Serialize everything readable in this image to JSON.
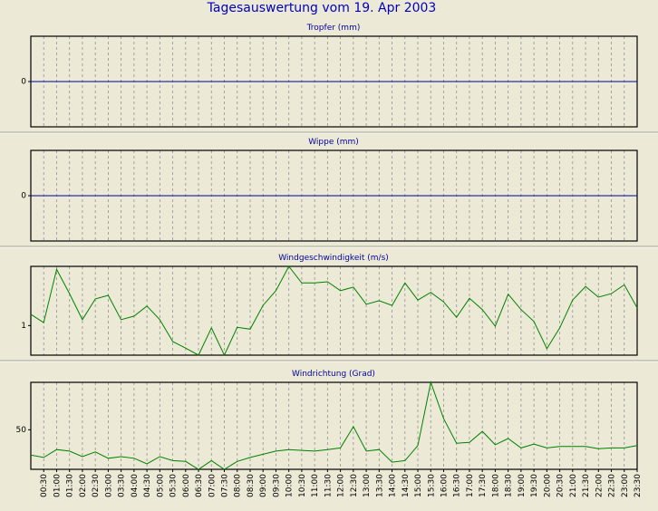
{
  "title": "Tagesauswertung vom 19. Apr 2003",
  "chart_data": [
    {
      "type": "line",
      "title": "Tropfer (mm)",
      "color": "#0000a0",
      "values": [
        0,
        0,
        0,
        0,
        0,
        0,
        0,
        0,
        0,
        0,
        0,
        0,
        0,
        0,
        0,
        0,
        0,
        0,
        0,
        0,
        0,
        0,
        0,
        0,
        0,
        0,
        0,
        0,
        0,
        0,
        0,
        0,
        0,
        0,
        0,
        0,
        0,
        0,
        0,
        0,
        0,
        0,
        0,
        0,
        0,
        0,
        0,
        0
      ],
      "ylim": [
        -1,
        1
      ],
      "yticks": [
        0
      ]
    },
    {
      "type": "line",
      "title": "Wippe (mm)",
      "color": "#0000a0",
      "values": [
        0,
        0,
        0,
        0,
        0,
        0,
        0,
        0,
        0,
        0,
        0,
        0,
        0,
        0,
        0,
        0,
        0,
        0,
        0,
        0,
        0,
        0,
        0,
        0,
        0,
        0,
        0,
        0,
        0,
        0,
        0,
        0,
        0,
        0,
        0,
        0,
        0,
        0,
        0,
        0,
        0,
        0,
        0,
        0,
        0,
        0,
        0,
        0
      ],
      "ylim": [
        -1,
        1
      ],
      "yticks": [
        0
      ]
    },
    {
      "type": "line",
      "title": "Windgeschwindigkeit (m/s)",
      "color": "#008000",
      "values": [
        1.19,
        1.05,
        1.95,
        1.54,
        1.1,
        1.45,
        1.51,
        1.1,
        1.16,
        1.33,
        1.1,
        0.73,
        0.62,
        0.5,
        0.96,
        0.5,
        0.97,
        0.94,
        1.34,
        1.59,
        2.0,
        1.72,
        1.72,
        1.74,
        1.59,
        1.65,
        1.36,
        1.42,
        1.34,
        1.72,
        1.43,
        1.56,
        1.4,
        1.14,
        1.46,
        1.27,
        0.99,
        1.53,
        1.27,
        1.07,
        0.61,
        0.96,
        1.43,
        1.66,
        1.48,
        1.54,
        1.69,
        1.3
      ],
      "ylim": [
        0.5,
        2.0
      ],
      "yticks": [
        1
      ]
    },
    {
      "type": "line",
      "title": "Windrichtung (Grad)",
      "color": "#008000",
      "values": [
        18,
        15,
        25,
        23,
        16,
        22,
        14,
        16,
        14,
        7,
        16,
        11,
        10,
        0,
        11,
        0,
        10,
        15,
        19,
        23,
        25,
        24,
        23,
        25,
        27,
        54,
        23,
        25,
        9,
        11,
        30,
        110,
        64,
        33,
        34,
        48,
        31,
        39,
        27,
        32,
        27,
        29,
        29,
        29,
        26,
        27,
        27,
        30
      ],
      "ylim": [
        0,
        110
      ],
      "yticks": [
        50
      ],
      "categories": [
        null,
        "00:30",
        "01:00",
        "01:30",
        "02:00",
        "02:30",
        "03:00",
        "03:30",
        "04:00",
        "04:30",
        "05:00",
        "05:30",
        "06:00",
        "06:30",
        "07:00",
        "07:30",
        "08:00",
        "08:30",
        "09:00",
        "09:30",
        "10:00",
        "10:30",
        "11:00",
        "11:30",
        "12:00",
        "12:30",
        "13:00",
        "13:30",
        "14:00",
        "14:30",
        "15:00",
        "15:30",
        "16:00",
        "16:30",
        "17:00",
        "17:30",
        "18:00",
        "18:30",
        "19:00",
        "19:30",
        "20:00",
        "20:30",
        "21:00",
        "21:30",
        "22:00",
        "22:30",
        "23:00",
        "23:30"
      ]
    }
  ]
}
